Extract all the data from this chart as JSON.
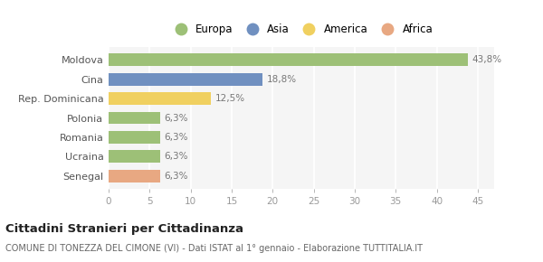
{
  "categories": [
    "Senegal",
    "Ucraina",
    "Romania",
    "Polonia",
    "Rep. Dominicana",
    "Cina",
    "Moldova"
  ],
  "values": [
    6.3,
    6.3,
    6.3,
    6.3,
    12.5,
    18.8,
    43.8
  ],
  "labels": [
    "6,3%",
    "6,3%",
    "6,3%",
    "6,3%",
    "12,5%",
    "18,8%",
    "43,8%"
  ],
  "bar_colors": [
    "#e8a882",
    "#9dc077",
    "#9dc077",
    "#9dc077",
    "#f0d060",
    "#7090c0",
    "#9dc077"
  ],
  "legend": [
    {
      "label": "Europa",
      "color": "#9dc077"
    },
    {
      "label": "Asia",
      "color": "#7090c0"
    },
    {
      "label": "America",
      "color": "#f0d060"
    },
    {
      "label": "Africa",
      "color": "#e8a882"
    }
  ],
  "xlim": [
    0,
    47
  ],
  "xticks": [
    0,
    5,
    10,
    15,
    20,
    25,
    30,
    35,
    40,
    45
  ],
  "title": "Cittadini Stranieri per Cittadinanza",
  "subtitle": "COMUNE DI TONEZZA DEL CIMONE (VI) - Dati ISTAT al 1° gennaio - Elaborazione TUTTITALIA.IT",
  "background_color": "#ffffff",
  "plot_bg_color": "#f5f5f5",
  "grid_color": "#ffffff",
  "label_color": "#777777",
  "tick_color": "#999999"
}
